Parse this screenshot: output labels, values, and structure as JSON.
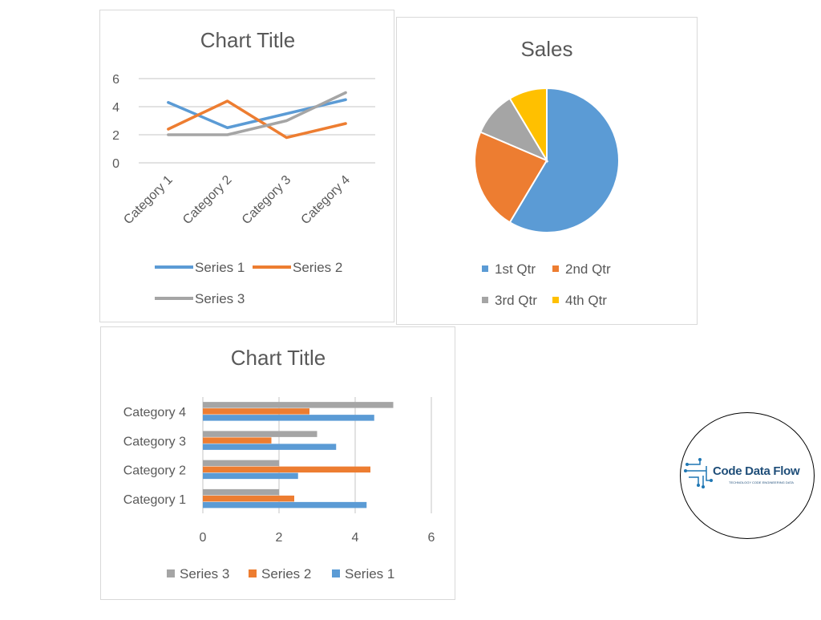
{
  "chart_data": [
    {
      "type": "line",
      "title": "Chart Title",
      "categories": [
        "Category 1",
        "Category 2",
        "Category 3",
        "Category 4"
      ],
      "ylim": [
        0,
        6
      ],
      "yticks": [
        "0",
        "2",
        "4",
        "6"
      ],
      "grid": true,
      "legend": "bottom",
      "series": [
        {
          "name": "Series 1",
          "color": "#5b9bd5",
          "values": [
            4.3,
            2.5,
            3.5,
            4.5
          ]
        },
        {
          "name": "Series 2",
          "color": "#ed7d31",
          "values": [
            2.4,
            4.4,
            1.8,
            2.8
          ]
        },
        {
          "name": "Series 3",
          "color": "#a5a5a5",
          "values": [
            2,
            2,
            3,
            5
          ]
        }
      ]
    },
    {
      "type": "pie",
      "title": "Sales",
      "legend": "bottom",
      "categories": [
        "1st Qtr",
        "2nd Qtr",
        "3rd Qtr",
        "4th Qtr"
      ],
      "values": [
        8.2,
        3.2,
        1.4,
        1.2
      ],
      "colors": [
        "#5b9bd5",
        "#ed7d31",
        "#a5a5a5",
        "#ffc000"
      ]
    },
    {
      "type": "bar",
      "orientation": "horizontal",
      "title": "Chart Title",
      "categories": [
        "Category 1",
        "Category 2",
        "Category 3",
        "Category 4"
      ],
      "xlim": [
        0,
        6
      ],
      "xticks": [
        "0",
        "2",
        "4",
        "6"
      ],
      "grid": true,
      "legend": "bottom",
      "series": [
        {
          "name": "Series 1",
          "color": "#5b9bd5",
          "values": [
            4.3,
            2.5,
            3.5,
            4.5
          ]
        },
        {
          "name": "Series 2",
          "color": "#ed7d31",
          "values": [
            2.4,
            4.4,
            1.8,
            2.8
          ]
        },
        {
          "name": "Series 3",
          "color": "#a5a5a5",
          "values": [
            2,
            2,
            3,
            5
          ]
        }
      ]
    }
  ],
  "logo": {
    "name": "Code Data Flow",
    "tagline": "TECHNOLOGY CODE ENGINEERING DATA",
    "color": "#1f4e79"
  }
}
